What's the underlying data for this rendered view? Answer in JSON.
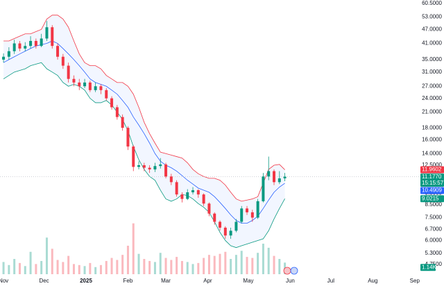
{
  "chart_data": {
    "type": "candlestick",
    "x": [
      0,
      4,
      8,
      12,
      16,
      20,
      24,
      28,
      32,
      36,
      40,
      44,
      48,
      52,
      56,
      60,
      64,
      68,
      72,
      76,
      80,
      84,
      88,
      92,
      96,
      100,
      104,
      108,
      112,
      116,
      120,
      124,
      128,
      132,
      136,
      140,
      144,
      148,
      152,
      156,
      160,
      164,
      168,
      172,
      176,
      180,
      184,
      188,
      192,
      196,
      200,
      204,
      208
    ],
    "open": [
      35,
      36,
      38,
      41,
      39,
      40,
      42,
      40,
      43,
      48,
      40,
      36,
      33,
      29,
      28,
      27,
      28,
      26,
      27,
      26,
      24,
      22,
      20,
      18,
      15,
      12.3,
      12.5,
      12.2,
      12,
      12.4,
      12.6,
      11.2,
      10.6,
      9.4,
      9,
      9.6,
      9.8,
      9.4,
      8.6,
      7.8,
      7.2,
      6.8,
      6.3,
      6.6,
      7.2,
      8.2,
      7.9,
      7.5,
      8.8,
      11.2,
      11.8,
      10.6,
      11
    ],
    "high": [
      37.2,
      39.5,
      42.5,
      42,
      41.5,
      44,
      43,
      45,
      51,
      49,
      41,
      37,
      34,
      30,
      29,
      29,
      28.5,
      28,
      27.5,
      26.5,
      24.5,
      22.5,
      20.5,
      18.3,
      15.2,
      13,
      12.8,
      12.5,
      12.8,
      13.4,
      12.8,
      11.5,
      10.8,
      9.6,
      9.9,
      10.1,
      9.9,
      9.5,
      8.7,
      7.9,
      7.3,
      6.9,
      6.8,
      7.4,
      8.4,
      8.4,
      8.1,
      9,
      11.6,
      13.6,
      12,
      11.8,
      11.6
    ],
    "low": [
      34,
      35,
      37,
      38,
      38,
      39,
      39,
      39.5,
      42,
      39,
      35,
      32,
      28,
      27,
      26,
      26.5,
      25.5,
      25.5,
      25,
      23.5,
      21.5,
      19.5,
      17.5,
      14.5,
      11.8,
      12,
      11.8,
      11.6,
      11.7,
      12.1,
      11,
      10.3,
      9.2,
      8.7,
      8.9,
      9.4,
      9.1,
      8.4,
      7.6,
      7,
      6.6,
      6.1,
      6.1,
      6.5,
      7.1,
      7.7,
      7.2,
      7.4,
      8.7,
      10.8,
      10.3,
      10.4,
      10.7
    ],
    "close": [
      36,
      38,
      41,
      39,
      40,
      42,
      40,
      43,
      48,
      40,
      36,
      33,
      29,
      28,
      27,
      28,
      26,
      27,
      26,
      24,
      22,
      20,
      18,
      15,
      12.3,
      12.5,
      12.2,
      12,
      12.4,
      12.6,
      11.2,
      10.6,
      9.4,
      9,
      9.6,
      9.8,
      9.4,
      8.6,
      7.8,
      7.2,
      6.8,
      6.3,
      6.6,
      7.2,
      8.2,
      7.9,
      7.5,
      8.8,
      11.2,
      11.8,
      10.6,
      11,
      11.18
    ],
    "upper": [
      42,
      42,
      43,
      44,
      45,
      45,
      46,
      47,
      52,
      54,
      54,
      52,
      48,
      42,
      37,
      34,
      33,
      33,
      32,
      30,
      29,
      28,
      28,
      27,
      25,
      22,
      19,
      17,
      15.5,
      14.2,
      14,
      13.8,
      13.6,
      13.4,
      12.8,
      12,
      11.5,
      11.2,
      11,
      11,
      10.8,
      10.3,
      9.6,
      9,
      8.8,
      8.9,
      9,
      9.2,
      10.5,
      12,
      12.5,
      12.6,
      11.96
    ],
    "middle": [
      34,
      35,
      36,
      37,
      38,
      39,
      40,
      40.5,
      41,
      42,
      41,
      39,
      37,
      35,
      33,
      31,
      29,
      28,
      27.5,
      27,
      26,
      25,
      23.5,
      22,
      20,
      18.5,
      17,
      15.5,
      14,
      13,
      12.5,
      12.2,
      11.8,
      11.3,
      10.8,
      10.4,
      10,
      9.8,
      9.6,
      9.2,
      8.7,
      8.2,
      7.7,
      7.3,
      7.1,
      7.1,
      7.3,
      7.6,
      8.2,
      8.9,
      9.6,
      10.1,
      10.49
    ],
    "lower": [
      29,
      30,
      31,
      31.5,
      32,
      33,
      33.5,
      34,
      32,
      31,
      30,
      28,
      27,
      27.5,
      27,
      26,
      24,
      23,
      23,
      23.5,
      22.5,
      21,
      19.5,
      17.5,
      15,
      13.2,
      12,
      11.2,
      10.8,
      9.8,
      9,
      8.8,
      9,
      9.4,
      9.3,
      9,
      8.6,
      8.3,
      7.9,
      7.2,
      6.5,
      6,
      5.7,
      5.6,
      5.7,
      5.8,
      5.9,
      6,
      6.1,
      6.6,
      7.4,
      8.2,
      9.02
    ],
    "up_color": "#089981",
    "down_color": "#f23645",
    "upper_color": "#f23645",
    "middle_color": "#2962ff",
    "lower_color": "#089981",
    "band_fill": "#2962ff",
    "volume": [
      1.2,
      0.9,
      1.5,
      1.1,
      0.8,
      2.2,
      1.0,
      1.3,
      3.6,
      2.5,
      1.4,
      1.2,
      1.8,
      1.0,
      0.9,
      0.8,
      1.1,
      0.7,
      0.9,
      1.3,
      1.6,
      1.4,
      1.9,
      2.8,
      5.0,
      2.0,
      1.5,
      1.3,
      1.2,
      2.1,
      1.6,
      1.4,
      1.7,
      1.3,
      1.2,
      1.0,
      1.1,
      1.6,
      1.9,
      1.8,
      2.0,
      2.2,
      1.5,
      1.9,
      2.3,
      1.7,
      1.6,
      2.1,
      3.0,
      2.6,
      1.8,
      1.5,
      1.14
    ],
    "vlim": [
      0,
      5.8
    ],
    "log_scale": true,
    "ylim": [
      4.32,
      62.6
    ],
    "yticks": [
      {
        "value": 60.5,
        "label": "60.5000"
      },
      {
        "value": 53,
        "label": "53.0000"
      },
      {
        "value": 47,
        "label": "47.0000"
      },
      {
        "value": 41,
        "label": "41.0000"
      },
      {
        "value": 35,
        "label": "35.0000"
      },
      {
        "value": 31,
        "label": "31.0000"
      },
      {
        "value": 27,
        "label": "27.0000"
      },
      {
        "value": 24,
        "label": "24.0000"
      },
      {
        "value": 21,
        "label": "21.0000"
      },
      {
        "value": 18,
        "label": "18.0000"
      },
      {
        "value": 16,
        "label": "16.0000"
      },
      {
        "value": 14,
        "label": "14.0000"
      },
      {
        "value": 12.5,
        "label": "12.5000"
      },
      {
        "value": 9.5,
        "label": "9.5000"
      },
      {
        "value": 8.5,
        "label": "8.5000"
      },
      {
        "value": 7.5,
        "label": "7.5000"
      },
      {
        "value": 6.7,
        "label": "6.7000"
      },
      {
        "value": 6,
        "label": "6.0000"
      },
      {
        "value": 5.3,
        "label": "5.3000"
      },
      {
        "value": 4.75,
        "label": "4.7500"
      }
    ],
    "xlim": [
      -2.6,
      307.7
    ],
    "xticks": [
      {
        "value": 0,
        "label": "Nov"
      },
      {
        "value": 30,
        "label": "Dec"
      },
      {
        "value": 61,
        "label": "2025"
      },
      {
        "value": 92,
        "label": "Feb"
      },
      {
        "value": 120,
        "label": "Mar"
      },
      {
        "value": 151,
        "label": "Apr"
      },
      {
        "value": 181,
        "label": "May"
      },
      {
        "value": 212,
        "label": "Jun"
      },
      {
        "value": 242,
        "label": "Jul"
      },
      {
        "value": 273,
        "label": "Aug"
      },
      {
        "value": 304,
        "label": "Sep"
      }
    ],
    "tags": [
      {
        "value": 11.9602,
        "label": "11.9602",
        "color": "#f23645"
      },
      {
        "value": 11.177,
        "label": "11.1770",
        "color": "#089981",
        "countdown": "15:15:57"
      },
      {
        "value": 10.4909,
        "label": "10.4909",
        "color": "#2962ff"
      },
      {
        "value": 9.0215,
        "label": "9.0215",
        "color": "#089981"
      }
    ],
    "volume_tag": {
      "value": 1.14,
      "label": "1.14K",
      "color": "#089981"
    }
  }
}
